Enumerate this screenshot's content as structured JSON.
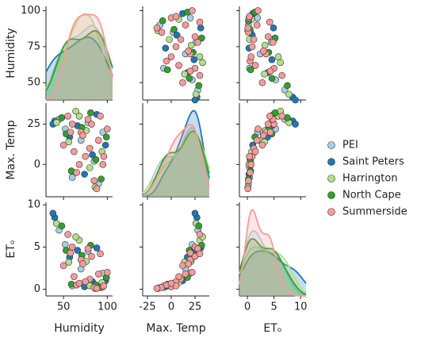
{
  "chart_data": {
    "type": "pairplot",
    "variables": [
      {
        "label": "Humidity",
        "xlim": [
          30,
          106
        ],
        "xticks": [
          50,
          100
        ],
        "ylim": [
          38,
          103
        ],
        "yticks": [
          50,
          75,
          100
        ]
      },
      {
        "label": "Max. Temp",
        "xlim": [
          -30,
          40
        ],
        "xticks": [
          -25,
          0,
          25
        ],
        "ylim": [
          -20,
          38
        ],
        "yticks": [
          0,
          25
        ]
      },
      {
        "label": "ETₒ",
        "xlim": [
          -1.5,
          11
        ],
        "xticks": [
          0,
          5,
          10
        ],
        "ylim": [
          -0.8,
          10.3
        ],
        "yticks": [
          0,
          5,
          10
        ]
      }
    ],
    "legend": "right",
    "series": [
      {
        "name": "PEI",
        "color": "#a6cee3",
        "values": [
          [
            45,
            28,
            7.0
          ],
          [
            85,
            2,
            0.6
          ],
          [
            70,
            15,
            2.4
          ],
          [
            95,
            20,
            1.9
          ],
          [
            60,
            -8,
            0.4
          ],
          [
            78,
            26,
            4.5
          ],
          [
            90,
            -12,
            0.2
          ],
          [
            52,
            22,
            5.3
          ]
        ]
      },
      {
        "name": "Saint Peters",
        "color": "#1f78b4",
        "values": [
          [
            40,
            27,
            8.5
          ],
          [
            83,
            6,
            0.9
          ],
          [
            66,
            24,
            4.6
          ],
          [
            98,
            12,
            1.0
          ],
          [
            74,
            -6,
            0.3
          ],
          [
            57,
            17,
            3.8
          ],
          [
            88,
            31,
            4.9
          ],
          [
            38,
            25,
            9.0
          ]
        ]
      },
      {
        "name": "Harrington",
        "color": "#b2df8a",
        "values": [
          [
            42,
            26,
            7.8
          ],
          [
            80,
            -2,
            0.4
          ],
          [
            68,
            30,
            5.8
          ],
          [
            94,
            8,
            0.8
          ],
          [
            56,
            14,
            3.2
          ],
          [
            76,
            21,
            3.3
          ],
          [
            86,
            -14,
            0.1
          ],
          [
            64,
            33,
            6.2
          ]
        ]
      },
      {
        "name": "North Cape",
        "color": "#33a02c",
        "values": [
          [
            48,
            29,
            7.5
          ],
          [
            87,
            3,
            0.5
          ],
          [
            71,
            23,
            4.0
          ],
          [
            99,
            17,
            1.4
          ],
          [
            59,
            -4,
            0.6
          ],
          [
            81,
            32,
            5.2
          ],
          [
            93,
            -9,
            0.2
          ],
          [
            53,
            19,
            4.6
          ]
        ]
      },
      {
        "name": "Summerside",
        "color": "#fb9a99",
        "values": [
          [
            80,
            10,
            1.2
          ],
          [
            95,
            0,
            0.3
          ],
          [
            70,
            20,
            3.5
          ],
          [
            60,
            25,
            5.0
          ],
          [
            85,
            -10,
            0.2
          ],
          [
            75,
            5,
            0.9
          ],
          [
            90,
            15,
            1.8
          ],
          [
            55,
            30,
            6.5
          ],
          [
            65,
            -5,
            0.5
          ],
          [
            100,
            22,
            2.0
          ],
          [
            50,
            12,
            2.8
          ],
          [
            78,
            28,
            4.8
          ],
          [
            88,
            -15,
            0.1
          ],
          [
            72,
            18,
            3.0
          ],
          [
            62,
            8,
            1.5
          ],
          [
            96,
            5,
            0.4
          ],
          [
            82,
            25,
            3.9
          ],
          [
            68,
            0,
            0.7
          ],
          [
            58,
            20,
            4.3
          ],
          [
            92,
            30,
            4.2
          ]
        ]
      }
    ]
  }
}
